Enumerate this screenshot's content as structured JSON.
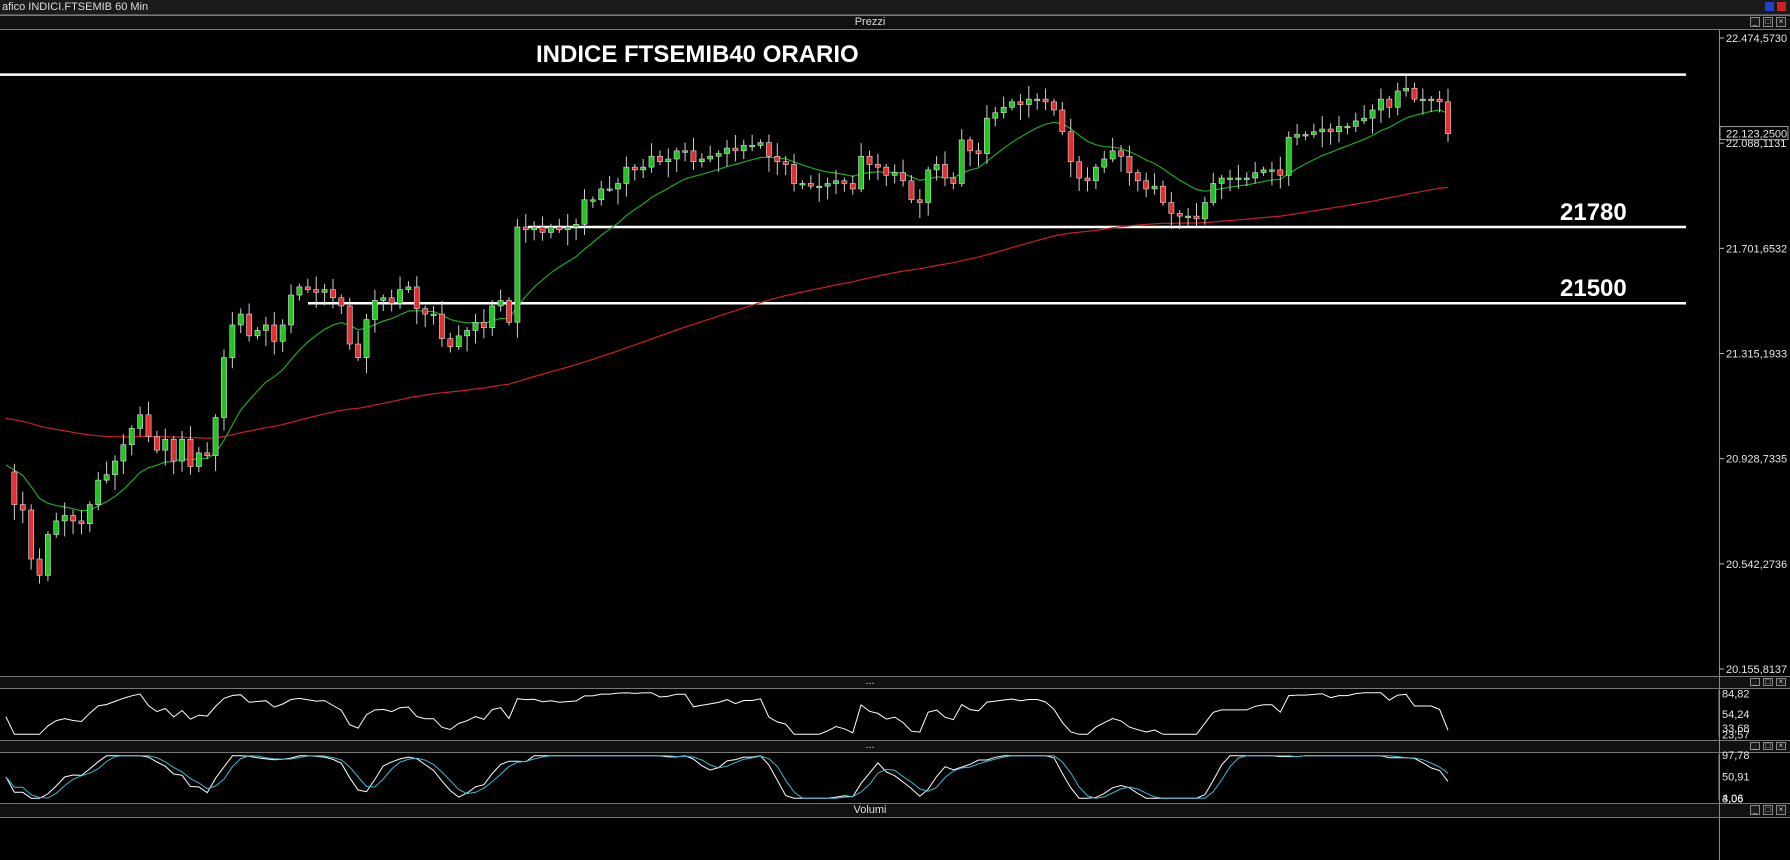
{
  "window": {
    "title": "afico INDICI.FTSEMIB 60 Min",
    "pane_prezzi": "Prezzi",
    "pane_sep1": "...",
    "pane_sep2": "...",
    "pane_volumi": "Volumi"
  },
  "colors": {
    "background": "#000000",
    "candle_up": "#22c422",
    "candle_down": "#e03030",
    "ma_short": "#1fa81f",
    "ma_long": "#cc2020",
    "oscillator1": "#ffffff",
    "oscillator2_a": "#ffffff",
    "oscillator2_b": "#3fb8d8",
    "levels": "#ffffff"
  },
  "chart_data": [
    {
      "type": "candlestick",
      "title": "INDICE FTSEMIB40 ORARIO",
      "ylim": [
        20155.8137,
        22474.573
      ],
      "price_axis_labels": [
        "22.474,5730",
        "22.123,2500",
        "22.088,1131",
        "21.701,6532",
        "21.315,1933",
        "20.928,7335",
        "20.542,2736",
        "20.155,8137"
      ],
      "price_axis_values": [
        22474.573,
        22123.25,
        22088.1131,
        21701.6532,
        21315.1933,
        20928.7335,
        20542.2736,
        20155.8137
      ],
      "last_price_label": "22.123,2500",
      "horizontal_levels": [
        {
          "label": "21780",
          "value": 21780
        },
        {
          "label": "21500",
          "value": 21500
        }
      ],
      "resistance_value": 22340,
      "closes": [
        20880,
        20760,
        20740,
        20560,
        20500,
        20650,
        20700,
        20720,
        20700,
        20690,
        20760,
        20850,
        20870,
        20920,
        20980,
        21040,
        21090,
        21010,
        20960,
        21000,
        20920,
        21000,
        20900,
        20950,
        20940,
        21080,
        21300,
        21420,
        21460,
        21380,
        21400,
        21420,
        21360,
        21420,
        21530,
        21560,
        21550,
        21540,
        21550,
        21520,
        21490,
        21350,
        21300,
        21440,
        21510,
        21520,
        21500,
        21550,
        21560,
        21480,
        21460,
        21460,
        21370,
        21340,
        21380,
        21400,
        21430,
        21410,
        21490,
        21510,
        21430,
        21780,
        21770,
        21780,
        21760,
        21780,
        21770,
        21780,
        21790,
        21880,
        21880,
        21920,
        21920,
        21940,
        22000,
        21990,
        22000,
        22040,
        22020,
        22030,
        22060,
        22060,
        22020,
        22030,
        22040,
        22050,
        22070,
        22060,
        22080,
        22080,
        22090,
        22040,
        22020,
        22010,
        21940,
        21940,
        21930,
        21930,
        21940,
        21950,
        21940,
        21920,
        22040,
        22010,
        22000,
        21970,
        21980,
        21950,
        21880,
        21870,
        21990,
        22010,
        21960,
        21940,
        22100,
        22060,
        22050,
        22180,
        22200,
        22220,
        22240,
        22230,
        22250,
        22250,
        22240,
        22210,
        22130,
        22020,
        21960,
        21950,
        22000,
        22030,
        22060,
        22040,
        21980,
        21950,
        21920,
        21930,
        21870,
        21830,
        21820,
        21820,
        21810,
        21870,
        21940,
        21960,
        21960,
        21960,
        21960,
        21980,
        21990,
        21990,
        21970,
        22110,
        22120,
        22120,
        22130,
        22140,
        22130,
        22150,
        22150,
        22170,
        22180,
        22210,
        22250,
        22220,
        22280,
        22290,
        22250,
        22250,
        22250,
        22240,
        22123
      ]
    },
    {
      "type": "line",
      "title": "",
      "axis_labels": [
        "84,82",
        "54,24",
        "33,68",
        "23,57"
      ],
      "axis_values": [
        84.82,
        54.24,
        33.68,
        23.57
      ],
      "ylim": [
        20,
        90
      ]
    },
    {
      "type": "line",
      "title": "",
      "axis_labels": [
        "97,78",
        "50,91",
        "3,06",
        "4,06"
      ],
      "axis_values": [
        97.78,
        50.91,
        3.06,
        4.06
      ],
      "ylim": [
        0,
        100
      ]
    }
  ]
}
